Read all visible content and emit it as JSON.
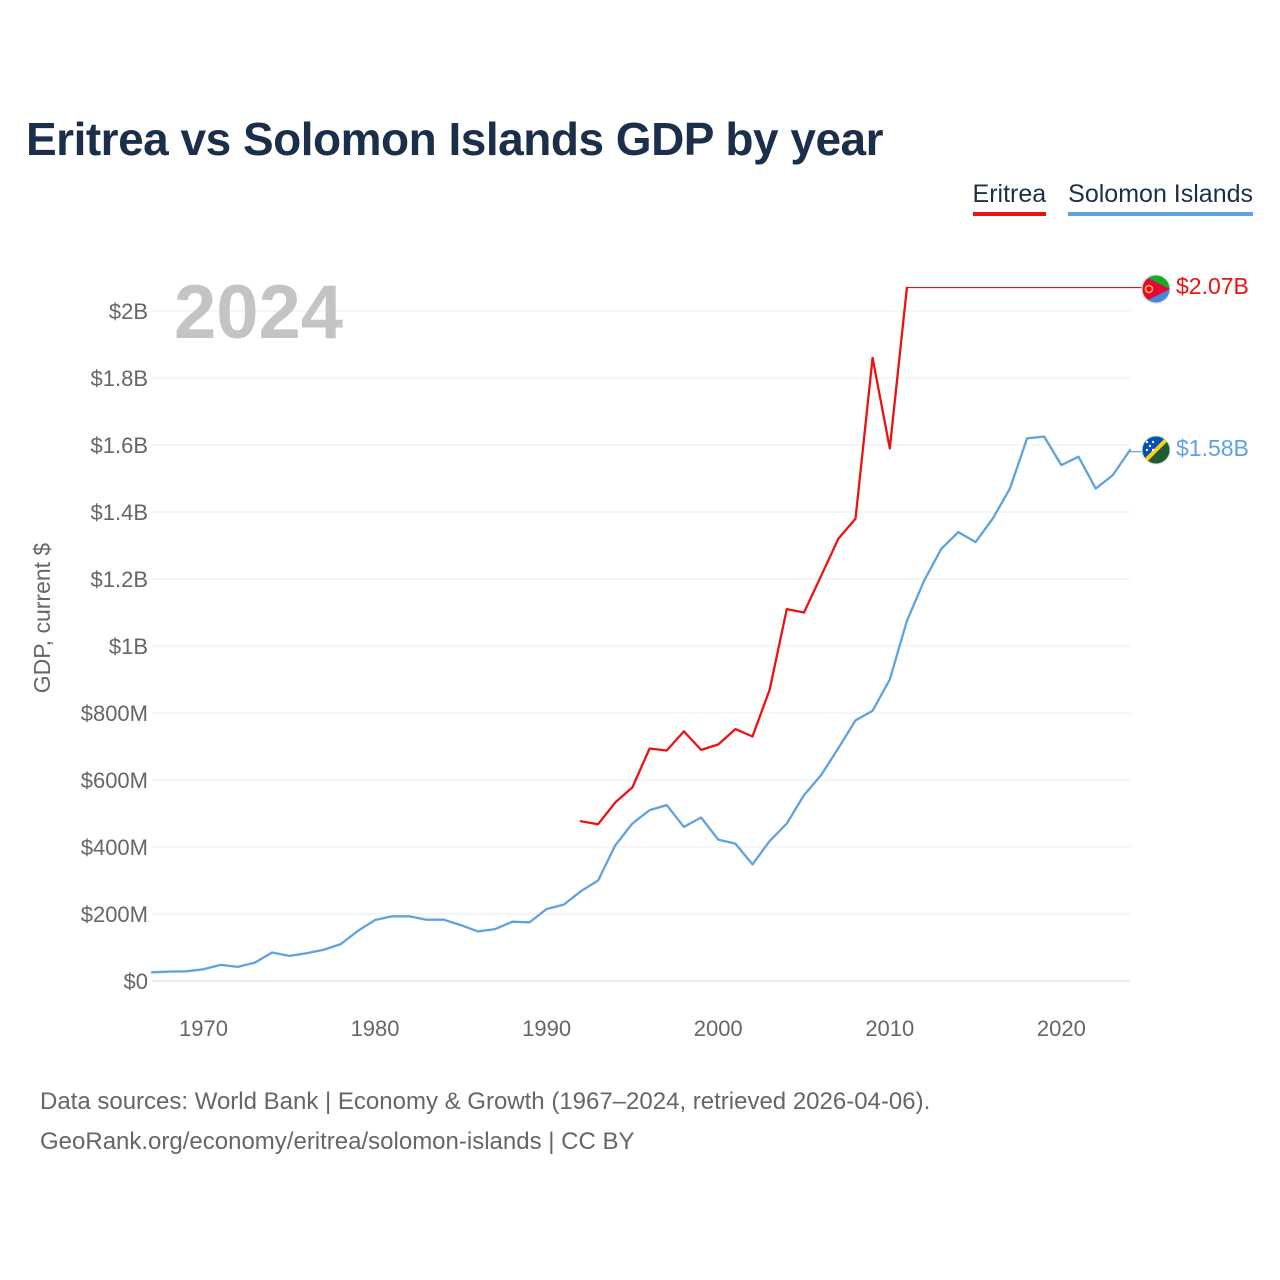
{
  "title": "Eritrea vs Solomon Islands GDP by year",
  "legend": [
    {
      "label": "Eritrea",
      "color": "#ee1111"
    },
    {
      "label": "Solomon Islands",
      "color": "#5fa2e0"
    }
  ],
  "year_display": "2024",
  "sources": {
    "line1": "Data sources: World Bank | Economy & Growth (1967–2024, retrieved 2026-04-06).",
    "line2": "GeoRank.org/economy/eritrea/solomon-islands | CC BY"
  },
  "chart_data": {
    "type": "line",
    "title": "Eritrea vs Solomon Islands GDP by year",
    "xlabel": "",
    "ylabel": "GDP, current $",
    "xlim": [
      1967,
      2024
    ],
    "ylim": [
      0,
      2000000000
    ],
    "x_ticks": [
      {
        "value": 1970,
        "label": "1970"
      },
      {
        "value": 1980,
        "label": "1980"
      },
      {
        "value": 1990,
        "label": "1990"
      },
      {
        "value": 2000,
        "label": "2000"
      },
      {
        "value": 2010,
        "label": "2010"
      },
      {
        "value": 2020,
        "label": "2020"
      }
    ],
    "y_ticks": [
      {
        "value": 0,
        "label": "$0"
      },
      {
        "value": 200000000,
        "label": "$200M"
      },
      {
        "value": 400000000,
        "label": "$400M"
      },
      {
        "value": 600000000,
        "label": "$600M"
      },
      {
        "value": 800000000,
        "label": "$800M"
      },
      {
        "value": 1000000000,
        "label": "$1B"
      },
      {
        "value": 1200000000,
        "label": "$1.2B"
      },
      {
        "value": 1400000000,
        "label": "$1.4B"
      },
      {
        "value": 1600000000,
        "label": "$1.6B"
      },
      {
        "value": 1800000000,
        "label": "$1.8B"
      },
      {
        "value": 2000000000,
        "label": "$2B"
      }
    ],
    "grid": true,
    "legend_position": "top-right",
    "series": [
      {
        "name": "Eritrea",
        "color": "#ee1111",
        "end_label": "$2.07B",
        "end_value": 2070000000,
        "flag_icon": "eritrea-flag-icon",
        "data": [
          [
            1992,
            477000000
          ],
          [
            1993,
            468000000
          ],
          [
            1994,
            533000000
          ],
          [
            1995,
            578000000
          ],
          [
            1996,
            694000000
          ],
          [
            1997,
            688000000
          ],
          [
            1998,
            745000000
          ],
          [
            1999,
            690000000
          ],
          [
            2000,
            706000000
          ],
          [
            2001,
            752000000
          ],
          [
            2002,
            730000000
          ],
          [
            2003,
            870000000
          ],
          [
            2004,
            1110000000
          ],
          [
            2005,
            1100000000
          ],
          [
            2006,
            1210000000
          ],
          [
            2007,
            1320000000
          ],
          [
            2008,
            1380000000
          ],
          [
            2009,
            1860000000
          ],
          [
            2010,
            1590000000
          ],
          [
            2011,
            2070000000
          ]
        ]
      },
      {
        "name": "Solomon Islands",
        "color": "#5fa2e0",
        "end_label": "$1.58B",
        "end_value": 1580000000,
        "flag_icon": "solomon-islands-flag-icon",
        "data": [
          [
            1967,
            26000000
          ],
          [
            1968,
            28000000
          ],
          [
            1969,
            29000000
          ],
          [
            1970,
            35000000
          ],
          [
            1971,
            48000000
          ],
          [
            1972,
            42000000
          ],
          [
            1973,
            55000000
          ],
          [
            1974,
            85000000
          ],
          [
            1975,
            75000000
          ],
          [
            1976,
            83000000
          ],
          [
            1977,
            93000000
          ],
          [
            1978,
            110000000
          ],
          [
            1979,
            150000000
          ],
          [
            1980,
            182000000
          ],
          [
            1981,
            193000000
          ],
          [
            1982,
            193000000
          ],
          [
            1983,
            183000000
          ],
          [
            1984,
            183000000
          ],
          [
            1985,
            167000000
          ],
          [
            1986,
            148000000
          ],
          [
            1987,
            155000000
          ],
          [
            1988,
            177000000
          ],
          [
            1989,
            175000000
          ],
          [
            1990,
            215000000
          ],
          [
            1991,
            228000000
          ],
          [
            1992,
            268000000
          ],
          [
            1993,
            300000000
          ],
          [
            1994,
            405000000
          ],
          [
            1995,
            470000000
          ],
          [
            1996,
            510000000
          ],
          [
            1997,
            525000000
          ],
          [
            1998,
            460000000
          ],
          [
            1999,
            488000000
          ],
          [
            2000,
            422000000
          ],
          [
            2001,
            410000000
          ],
          [
            2002,
            348000000
          ],
          [
            2003,
            418000000
          ],
          [
            2004,
            470000000
          ],
          [
            2005,
            555000000
          ],
          [
            2006,
            615000000
          ],
          [
            2007,
            695000000
          ],
          [
            2008,
            778000000
          ],
          [
            2009,
            807000000
          ],
          [
            2010,
            900000000
          ],
          [
            2011,
            1075000000
          ],
          [
            2012,
            1195000000
          ],
          [
            2013,
            1290000000
          ],
          [
            2014,
            1340000000
          ],
          [
            2015,
            1310000000
          ],
          [
            2016,
            1380000000
          ],
          [
            2017,
            1470000000
          ],
          [
            2018,
            1620000000
          ],
          [
            2019,
            1625000000
          ],
          [
            2020,
            1540000000
          ],
          [
            2021,
            1565000000
          ],
          [
            2022,
            1470000000
          ],
          [
            2023,
            1510000000
          ],
          [
            2024,
            1585000000
          ]
        ]
      }
    ]
  }
}
